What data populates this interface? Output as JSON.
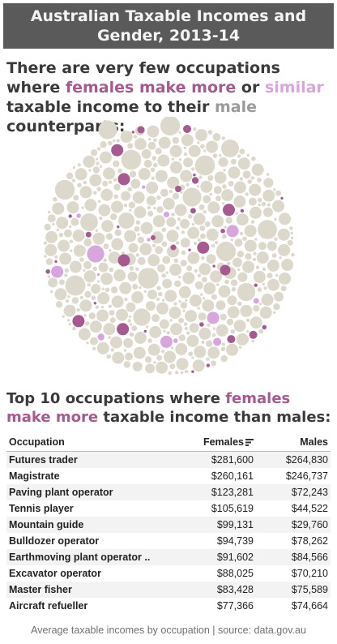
{
  "title": {
    "line1": "Australian Taxable Incomes and",
    "line2": "Gender, 2013-14"
  },
  "headline": {
    "p1": "There are very few occupations where ",
    "female": "females make more",
    "p2": " or ",
    "similar": "similar",
    "p3": " taxable income to their ",
    "male": "male",
    "p4": " counterparts:"
  },
  "subhead": {
    "p1": "Top 10 occupations where ",
    "female": "females make more",
    "p2": " taxable income than males:"
  },
  "colors": {
    "female_more": "#a65a8f",
    "similar": "#d7a6dd",
    "male_more": "#dcd8cc",
    "title_bg": "#5a5a5a"
  },
  "table": {
    "headers": [
      "Occupation",
      "Females",
      "Males"
    ],
    "sort_icon": "sort-descending-icon",
    "rows": [
      [
        "Futures trader",
        "$281,600",
        "$264,830"
      ],
      [
        "Magistrate",
        "$260,161",
        "$246,737"
      ],
      [
        "Paving plant operator",
        "$123,281",
        "$72,243"
      ],
      [
        "Tennis player",
        "$105,619",
        "$44,522"
      ],
      [
        "Mountain guide",
        "$99,131",
        "$29,760"
      ],
      [
        "Bulldozer operator",
        "$94,739",
        "$78,262"
      ],
      [
        "Earthmoving plant operator ..",
        "$91,602",
        "$84,566"
      ],
      [
        "Excavator operator",
        "$88,025",
        "$70,210"
      ],
      [
        "Master fisher",
        "$83,428",
        "$75,589"
      ],
      [
        "Aircraft refueller",
        "$77,366",
        "$74,664"
      ]
    ]
  },
  "footer": "Average taxable incomes by occupation | source: data.gov.au",
  "chart_data": {
    "type": "bubble-pack",
    "categories": [
      "females make more",
      "similar",
      "male"
    ],
    "approx_counts": {
      "females make more": 45,
      "similar": 25,
      "male": 1000
    },
    "legend": "inline in headline text"
  }
}
